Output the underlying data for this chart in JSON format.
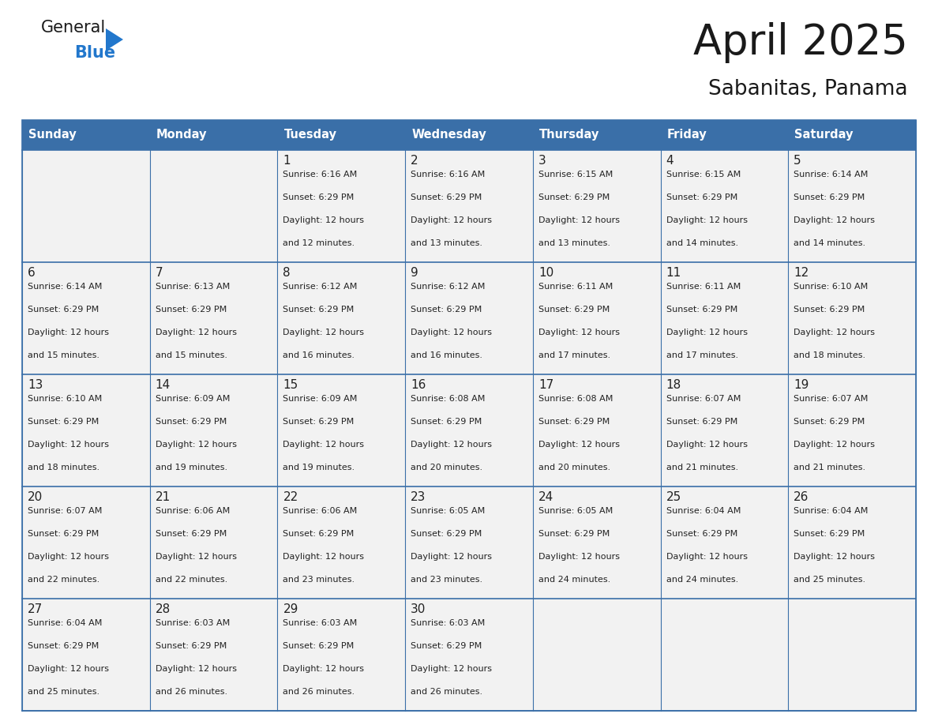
{
  "title": "April 2025",
  "subtitle": "Sabanitas, Panama",
  "days_of_week": [
    "Sunday",
    "Monday",
    "Tuesday",
    "Wednesday",
    "Thursday",
    "Friday",
    "Saturday"
  ],
  "header_bg": "#3a6fa8",
  "header_text": "#ffffff",
  "row_bg": "#f2f2f2",
  "cell_border_color": "#3a6fa8",
  "text_color": "#222222",
  "title_color": "#1a1a1a",
  "calendar_data": [
    [
      {
        "day": "",
        "sunrise": "",
        "sunset": "",
        "daylight_min": ""
      },
      {
        "day": "",
        "sunrise": "",
        "sunset": "",
        "daylight_min": ""
      },
      {
        "day": "1",
        "sunrise": "6:16 AM",
        "sunset": "6:29 PM",
        "daylight_min": "12 minutes."
      },
      {
        "day": "2",
        "sunrise": "6:16 AM",
        "sunset": "6:29 PM",
        "daylight_min": "13 minutes."
      },
      {
        "day": "3",
        "sunrise": "6:15 AM",
        "sunset": "6:29 PM",
        "daylight_min": "13 minutes."
      },
      {
        "day": "4",
        "sunrise": "6:15 AM",
        "sunset": "6:29 PM",
        "daylight_min": "14 minutes."
      },
      {
        "day": "5",
        "sunrise": "6:14 AM",
        "sunset": "6:29 PM",
        "daylight_min": "14 minutes."
      }
    ],
    [
      {
        "day": "6",
        "sunrise": "6:14 AM",
        "sunset": "6:29 PM",
        "daylight_min": "15 minutes."
      },
      {
        "day": "7",
        "sunrise": "6:13 AM",
        "sunset": "6:29 PM",
        "daylight_min": "15 minutes."
      },
      {
        "day": "8",
        "sunrise": "6:12 AM",
        "sunset": "6:29 PM",
        "daylight_min": "16 minutes."
      },
      {
        "day": "9",
        "sunrise": "6:12 AM",
        "sunset": "6:29 PM",
        "daylight_min": "16 minutes."
      },
      {
        "day": "10",
        "sunrise": "6:11 AM",
        "sunset": "6:29 PM",
        "daylight_min": "17 minutes."
      },
      {
        "day": "11",
        "sunrise": "6:11 AM",
        "sunset": "6:29 PM",
        "daylight_min": "17 minutes."
      },
      {
        "day": "12",
        "sunrise": "6:10 AM",
        "sunset": "6:29 PM",
        "daylight_min": "18 minutes."
      }
    ],
    [
      {
        "day": "13",
        "sunrise": "6:10 AM",
        "sunset": "6:29 PM",
        "daylight_min": "18 minutes."
      },
      {
        "day": "14",
        "sunrise": "6:09 AM",
        "sunset": "6:29 PM",
        "daylight_min": "19 minutes."
      },
      {
        "day": "15",
        "sunrise": "6:09 AM",
        "sunset": "6:29 PM",
        "daylight_min": "19 minutes."
      },
      {
        "day": "16",
        "sunrise": "6:08 AM",
        "sunset": "6:29 PM",
        "daylight_min": "20 minutes."
      },
      {
        "day": "17",
        "sunrise": "6:08 AM",
        "sunset": "6:29 PM",
        "daylight_min": "20 minutes."
      },
      {
        "day": "18",
        "sunrise": "6:07 AM",
        "sunset": "6:29 PM",
        "daylight_min": "21 minutes."
      },
      {
        "day": "19",
        "sunrise": "6:07 AM",
        "sunset": "6:29 PM",
        "daylight_min": "21 minutes."
      }
    ],
    [
      {
        "day": "20",
        "sunrise": "6:07 AM",
        "sunset": "6:29 PM",
        "daylight_min": "22 minutes."
      },
      {
        "day": "21",
        "sunrise": "6:06 AM",
        "sunset": "6:29 PM",
        "daylight_min": "22 minutes."
      },
      {
        "day": "22",
        "sunrise": "6:06 AM",
        "sunset": "6:29 PM",
        "daylight_min": "23 minutes."
      },
      {
        "day": "23",
        "sunrise": "6:05 AM",
        "sunset": "6:29 PM",
        "daylight_min": "23 minutes."
      },
      {
        "day": "24",
        "sunrise": "6:05 AM",
        "sunset": "6:29 PM",
        "daylight_min": "24 minutes."
      },
      {
        "day": "25",
        "sunrise": "6:04 AM",
        "sunset": "6:29 PM",
        "daylight_min": "24 minutes."
      },
      {
        "day": "26",
        "sunrise": "6:04 AM",
        "sunset": "6:29 PM",
        "daylight_min": "25 minutes."
      }
    ],
    [
      {
        "day": "27",
        "sunrise": "6:04 AM",
        "sunset": "6:29 PM",
        "daylight_min": "25 minutes."
      },
      {
        "day": "28",
        "sunrise": "6:03 AM",
        "sunset": "6:29 PM",
        "daylight_min": "26 minutes."
      },
      {
        "day": "29",
        "sunrise": "6:03 AM",
        "sunset": "6:29 PM",
        "daylight_min": "26 minutes."
      },
      {
        "day": "30",
        "sunrise": "6:03 AM",
        "sunset": "6:29 PM",
        "daylight_min": "26 minutes."
      },
      {
        "day": "",
        "sunrise": "",
        "sunset": "",
        "daylight_min": ""
      },
      {
        "day": "",
        "sunrise": "",
        "sunset": "",
        "daylight_min": ""
      },
      {
        "day": "",
        "sunrise": "",
        "sunset": "",
        "daylight_min": ""
      }
    ]
  ],
  "logo_color_general": "#1a1a1a",
  "logo_color_blue": "#2277cc",
  "logo_triangle_color": "#2277cc",
  "fig_width": 11.88,
  "fig_height": 9.18,
  "dpi": 100
}
